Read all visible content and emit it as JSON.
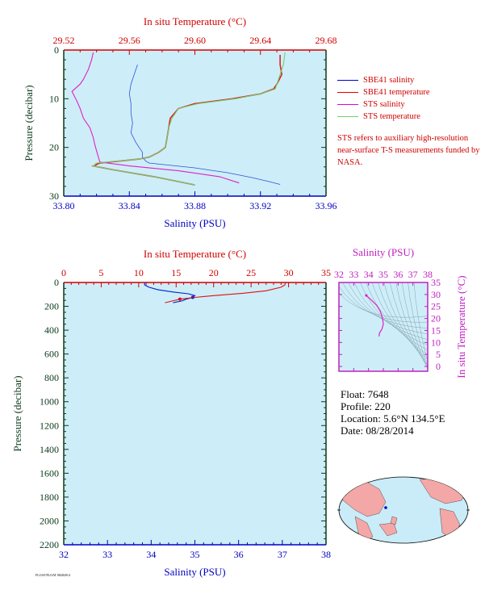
{
  "colors": {
    "plot_bg": "#cdeef8",
    "salinity_axis": "#0000c0",
    "temperature_axis": "#d00000",
    "pressure_axis": "#0a3a1a",
    "sbe_salinity": "#3050d8",
    "sbe_temperature": "#e02020",
    "sts_salinity": "#e020c8",
    "sts_temperature": "#70d070",
    "ts_axis": "#c020c0"
  },
  "legend": {
    "items": [
      {
        "label": "SBE41 salinity",
        "color": "#0000d0"
      },
      {
        "label": "SBE41 temperature",
        "color": "#e00000"
      },
      {
        "label": "STS salinity",
        "color": "#e000e0"
      },
      {
        "label": "STS temperature",
        "color": "#70d070"
      }
    ],
    "note": "STS refers to auxiliary high-resolution near-surface T-S measurements funded by NASA."
  },
  "float_info": {
    "float": "Float:  7648",
    "profile": "Profile:  220",
    "location": "Location:  5.6°N  134.5°E",
    "date": "Date:  08/28/2014"
  },
  "footer": "FLOAT/FLOAT 08282014",
  "chart_data": [
    {
      "type": "line",
      "name": "upper",
      "top_axis_label": "In situ Temperature (°C)",
      "bottom_axis_label": "Salinity (PSU)",
      "left_axis_label": "Pressure (decibar)",
      "salinity_lim": [
        33.8,
        33.96
      ],
      "salinity_ticks": [
        "33.80",
        "33.84",
        "33.88",
        "33.92",
        "33.96"
      ],
      "temperature_lim": [
        29.52,
        29.68
      ],
      "temperature_ticks": [
        "29.52",
        "29.56",
        "29.60",
        "29.64",
        "29.68"
      ],
      "pressure_lim": [
        0,
        30
      ],
      "pressure_ticks": [
        "0",
        "10",
        "20",
        "30"
      ],
      "grid": false,
      "series": [
        {
          "name": "SBE41 salinity",
          "axis": "salinity",
          "x": [
            33.845,
            33.843,
            33.841,
            33.84,
            33.841,
            33.841,
            33.842,
            33.841,
            33.844,
            33.846,
            33.848,
            33.848,
            33.85,
            33.852,
            33.88,
            33.9,
            33.915,
            33.925,
            33.932
          ],
          "y": [
            3,
            5,
            7,
            9,
            11,
            13,
            15,
            17,
            19,
            20,
            21,
            22,
            22.8,
            23.2,
            24.2,
            25.2,
            26.2,
            27.0,
            27.6
          ]
        },
        {
          "name": "SBE41 temperature",
          "axis": "temperature",
          "x": [
            29.652,
            29.652,
            29.653,
            29.65,
            29.648,
            29.64,
            29.623,
            29.6,
            29.59,
            29.585,
            29.584,
            29.583,
            29.582,
            29.578,
            29.572,
            29.566,
            29.542,
            29.538,
            29.55,
            29.575,
            29.6
          ],
          "y": [
            1,
            3,
            5,
            7,
            8,
            9,
            10,
            11,
            12,
            14,
            16,
            18,
            20,
            21,
            22,
            22.4,
            23.2,
            23.8,
            24.6,
            26.0,
            27.7
          ]
        },
        {
          "name": "STS salinity",
          "axis": "salinity",
          "x": [
            33.818,
            33.817,
            33.815,
            33.812,
            33.81,
            33.805,
            33.808,
            33.81,
            33.812,
            33.816,
            33.818,
            33.819,
            33.822,
            33.84,
            33.87,
            33.895,
            33.907
          ],
          "y": [
            0.5,
            2,
            4,
            6,
            7,
            8.5,
            10.5,
            12,
            14,
            16,
            18,
            19.5,
            23,
            23.8,
            24.8,
            26.0,
            27.3
          ]
        },
        {
          "name": "STS temperature",
          "axis": "temperature",
          "x": [
            29.655,
            29.654,
            29.652,
            29.65,
            29.649,
            29.64,
            29.625,
            29.602,
            29.59,
            29.586,
            29.584,
            29.583,
            29.582,
            29.578,
            29.572,
            29.566,
            29.54,
            29.538,
            29.55,
            29.575,
            29.6
          ],
          "y": [
            0.5,
            3,
            5,
            7,
            8,
            9,
            10,
            11,
            12,
            14,
            16,
            18,
            20,
            21,
            22,
            22.4,
            23.2,
            23.8,
            24.6,
            26.0,
            27.7
          ]
        }
      ]
    },
    {
      "type": "line",
      "name": "full-depth",
      "top_axis_label": "In situ Temperature (°C)",
      "bottom_axis_label": "Salinity (PSU)",
      "left_axis_label": "Pressure (decibar)",
      "salinity_lim": [
        32,
        38
      ],
      "salinity_ticks": [
        "32",
        "33",
        "34",
        "35",
        "36",
        "37",
        "38"
      ],
      "temperature_lim": [
        0,
        35
      ],
      "temperature_ticks": [
        "0",
        "5",
        "10",
        "15",
        "20",
        "25",
        "30",
        "35"
      ],
      "pressure_lim": [
        0,
        2200
      ],
      "pressure_ticks": [
        "0",
        "200",
        "400",
        "600",
        "800",
        "1000",
        "1200",
        "1400",
        "1600",
        "1800",
        "2000",
        "2200"
      ],
      "grid": false,
      "series": [
        {
          "name": "Salinity",
          "axis": "salinity",
          "x": [
            33.85,
            33.85,
            33.95,
            34.15,
            34.5,
            34.85,
            35.0,
            34.95,
            34.8,
            34.7,
            34.5
          ],
          "y": [
            0,
            20,
            40,
            60,
            80,
            95,
            110,
            125,
            140,
            155,
            170
          ]
        },
        {
          "name": "Temperature",
          "axis": "temperature",
          "x": [
            29.6,
            29.5,
            29.0,
            27.0,
            24.0,
            20.0,
            17.5,
            15.5,
            14.5,
            13.5
          ],
          "y": [
            0,
            20,
            40,
            70,
            90,
            110,
            125,
            140,
            155,
            170
          ]
        }
      ]
    },
    {
      "type": "scatter",
      "name": "ts-diagram",
      "top_axis_label": "Salinity (PSU)",
      "right_axis_label": "In situ Temperature (°C)",
      "x_ticks": [
        "32",
        "33",
        "34",
        "35",
        "36",
        "37",
        "38"
      ],
      "xlim": [
        32,
        38
      ],
      "y_ticks": [
        "0",
        "5",
        "10",
        "15",
        "20",
        "25",
        "30",
        "35"
      ],
      "ylim": [
        -2,
        35
      ],
      "series": [
        {
          "name": "T-S",
          "x": [
            33.85,
            33.9,
            34.05,
            34.3,
            34.55,
            34.8,
            34.95,
            35.0,
            34.9,
            34.75,
            34.7
          ],
          "y": [
            29.6,
            29.3,
            28.5,
            27.0,
            25.5,
            23.0,
            20.0,
            17.5,
            15.5,
            14.0,
            12.5
          ]
        }
      ]
    }
  ]
}
